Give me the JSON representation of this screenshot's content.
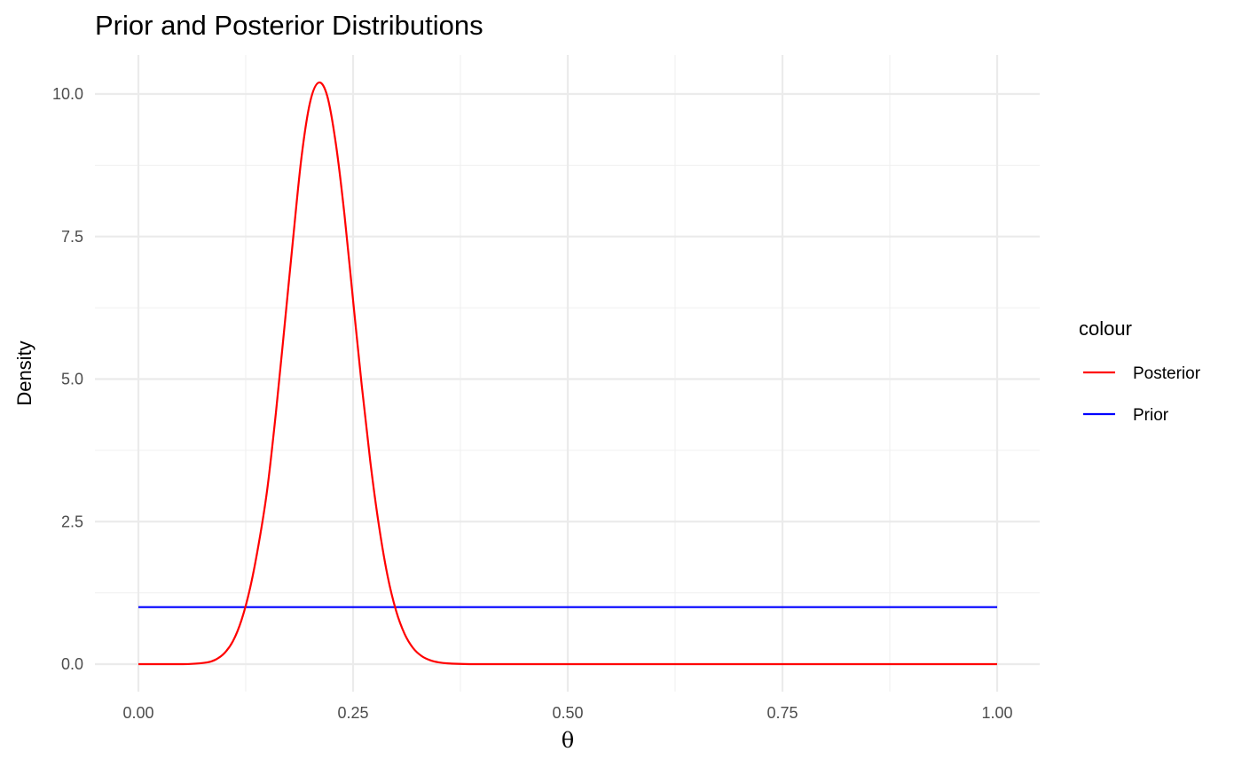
{
  "chart_data": {
    "type": "line",
    "title": "Prior and Posterior Distributions",
    "xlabel": "θ",
    "ylabel": "Density",
    "xlim": [
      0,
      1
    ],
    "ylim": [
      0,
      10.5
    ],
    "x_ticks": [
      0,
      0.25,
      0.5,
      0.75,
      1
    ],
    "x_tick_labels": [
      "0.00",
      "0.25",
      "0.50",
      "0.75",
      "1.00"
    ],
    "y_ticks": [
      0,
      2.5,
      5,
      7.5,
      10
    ],
    "y_tick_labels": [
      "0.0",
      "2.5",
      "5.0",
      "7.5",
      "10.0"
    ],
    "grid": true,
    "legend": {
      "title": "colour",
      "position": "right",
      "entries": [
        {
          "label": "Posterior",
          "color": "#ff0000"
        },
        {
          "label": "Prior",
          "color": "#0000ff"
        }
      ]
    },
    "series": [
      {
        "name": "Posterior",
        "color": "#ff0000",
        "x": [
          0,
          0.02,
          0.04,
          0.06,
          0.08,
          0.09,
          0.1,
          0.11,
          0.12,
          0.13,
          0.14,
          0.15,
          0.16,
          0.17,
          0.18,
          0.19,
          0.2,
          0.21,
          0.22,
          0.23,
          0.24,
          0.25,
          0.26,
          0.27,
          0.28,
          0.29,
          0.3,
          0.31,
          0.32,
          0.33,
          0.34,
          0.35,
          0.36,
          0.38,
          0.4,
          0.45,
          0.5,
          0.6,
          0.7,
          0.8,
          0.9,
          1.0
        ],
        "y": [
          0,
          0,
          0,
          0.003,
          0.03,
          0.08,
          0.19,
          0.4,
          0.77,
          1.33,
          2.1,
          3.06,
          4.39,
          5.9,
          7.44,
          8.9,
          9.86,
          10.2,
          9.96,
          9.12,
          7.88,
          6.38,
          4.9,
          3.56,
          2.44,
          1.56,
          0.94,
          0.53,
          0.28,
          0.14,
          0.067,
          0.03,
          0.013,
          0.002,
          0.0003,
          0,
          0,
          0,
          0,
          0,
          0,
          0
        ]
      },
      {
        "name": "Prior",
        "color": "#0000ff",
        "x": [
          0,
          1
        ],
        "y": [
          1,
          1
        ]
      }
    ]
  }
}
